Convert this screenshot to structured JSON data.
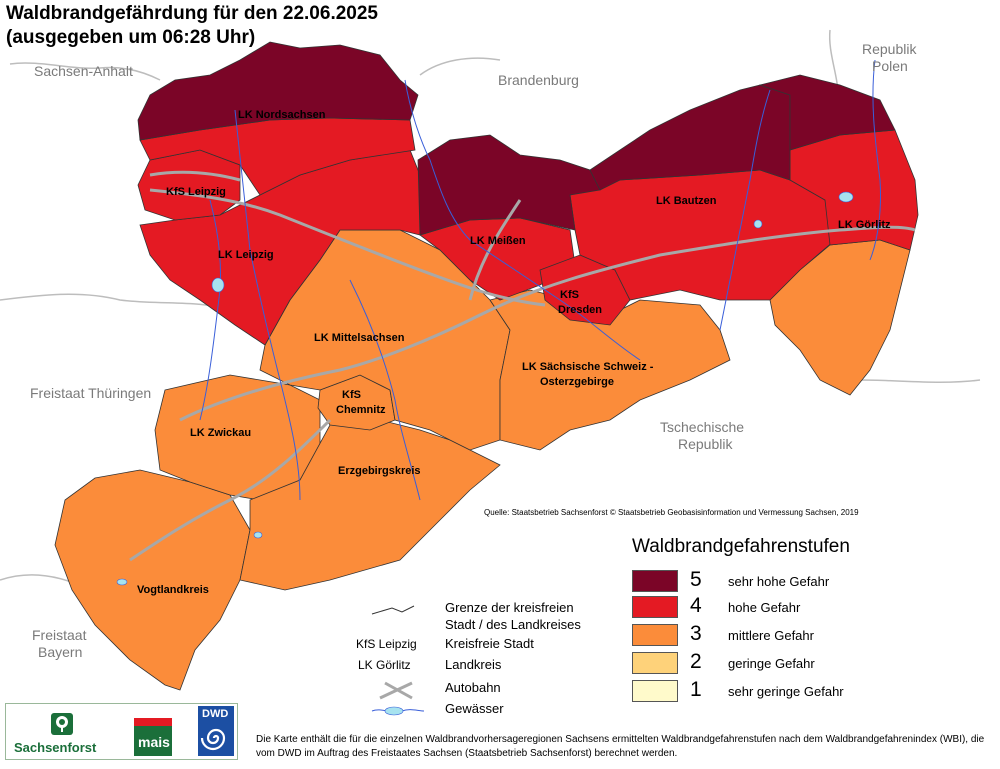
{
  "title": {
    "line1": "Waldbrandgefährdung  für den  22.06.2025",
    "line2": "(ausgegeben um 06:28 Uhr)"
  },
  "neighbors": {
    "sachsen_anhalt": "Sachsen-Anhalt",
    "brandenburg": "Brandenburg",
    "polen_1": "Republik",
    "polen_2": "Polen",
    "thueringen": "Freistaat Thüringen",
    "tschechien_1": "Tschechische",
    "tschechien_2": "Republik",
    "bayern_1": "Freistaat",
    "bayern_2": "Bayern"
  },
  "regions": [
    {
      "id": "nordsachsen",
      "label": "LK Nordsachsen",
      "level": 5
    },
    {
      "id": "leipzig_city",
      "label": "KfS Leipzig",
      "level": 4
    },
    {
      "id": "lk_leipzig",
      "label": "LK Leipzig",
      "level": 4
    },
    {
      "id": "meissen_north",
      "label": "",
      "level": 5
    },
    {
      "id": "meissen_south",
      "label": "LK Meißen",
      "level": 4
    },
    {
      "id": "bautzen_north",
      "label": "",
      "level": 5
    },
    {
      "id": "bautzen_south",
      "label": "LK Bautzen",
      "level": 4
    },
    {
      "id": "goerlitz_north",
      "label": "",
      "level": 5
    },
    {
      "id": "goerlitz_mid",
      "label": "LK Görlitz",
      "level": 4
    },
    {
      "id": "goerlitz_south",
      "label": "",
      "level": 3
    },
    {
      "id": "dresden",
      "label_1": "KfS",
      "label_2": "Dresden",
      "level": 4
    },
    {
      "id": "mittelsachsen",
      "label": "LK Mittelsachsen",
      "level": 3
    },
    {
      "id": "saechs_schweiz",
      "label_1": "LK Sächsische Schweiz -",
      "label_2": "Osterzgebirge",
      "level": 3
    },
    {
      "id": "chemnitz",
      "label_1": "KfS",
      "label_2": "Chemnitz",
      "level": 3
    },
    {
      "id": "zwickau",
      "label": "LK Zwickau",
      "level": 3
    },
    {
      "id": "erzgebirge",
      "label": "Erzgebirgskreis",
      "level": 3
    },
    {
      "id": "vogtland",
      "label": "Vogtlandkreis",
      "level": 3
    }
  ],
  "colors": {
    "level_5": "#7b0527",
    "level_4": "#e41a23",
    "level_3": "#fb8c3a",
    "level_2": "#fed27a",
    "level_1": "#fffacb",
    "river": "#3a5fd9",
    "motorway": "#a8a8a8",
    "border": "#333333",
    "neighbor_border": "#bdbdbd"
  },
  "source": "Quelle: Staatsbetrieb Sachsenforst  © Staatsbetrieb Geobasisinformation und Vermessung Sachsen, 2019",
  "legend": {
    "title": "Waldbrandgefahrenstufen",
    "items": [
      {
        "level": "5",
        "label": "sehr hohe Gefahr",
        "color": "#7b0527"
      },
      {
        "level": "4",
        "label": "hohe Gefahr",
        "color": "#e41a23"
      },
      {
        "level": "3",
        "label": "mittlere Gefahr",
        "color": "#fb8c3a"
      },
      {
        "level": "2",
        "label": "geringe Gefahr",
        "color": "#fed27a"
      },
      {
        "level": "1",
        "label": "sehr geringe Gefahr",
        "color": "#fffacb"
      }
    ]
  },
  "key": {
    "border_1": "Grenze der kreisfreien",
    "border_2": "Stadt / des Landkreises",
    "kfs_abbr": "KfS Leipzig",
    "kfs_label": "Kreisfreie Stadt",
    "lk_abbr": "LK Görlitz",
    "lk_label": "Landkreis",
    "motorway": "Autobahn",
    "water": "Gewässer"
  },
  "logos": {
    "sachsenforst": "Sachsenforst",
    "mais": "mais",
    "dwd": "DWD"
  },
  "footnote": "Die Karte enthält die für die einzelnen Waldbrandvorhersageregionen Sachsens ermittelten Waldbrandgefahrenstufen nach dem Waldbrandgefahrenindex (WBI), die vom DWD im Auftrag des Freistaates Sachsen (Staatsbetrieb Sachsenforst) berechnet werden."
}
